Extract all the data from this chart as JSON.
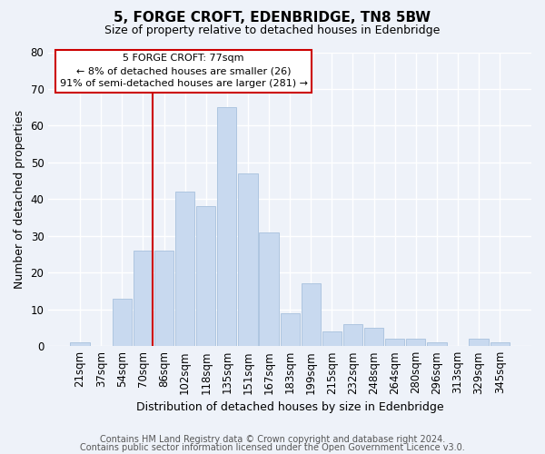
{
  "title": "5, FORGE CROFT, EDENBRIDGE, TN8 5BW",
  "subtitle": "Size of property relative to detached houses in Edenbridge",
  "xlabel": "Distribution of detached houses by size in Edenbridge",
  "ylabel": "Number of detached properties",
  "bar_labels": [
    "21sqm",
    "37sqm",
    "54sqm",
    "70sqm",
    "86sqm",
    "102sqm",
    "118sqm",
    "135sqm",
    "151sqm",
    "167sqm",
    "183sqm",
    "199sqm",
    "215sqm",
    "232sqm",
    "248sqm",
    "264sqm",
    "280sqm",
    "296sqm",
    "313sqm",
    "329sqm",
    "345sqm"
  ],
  "bar_values": [
    1,
    0,
    13,
    26,
    26,
    42,
    38,
    65,
    47,
    31,
    9,
    17,
    4,
    6,
    5,
    2,
    2,
    1,
    0,
    2,
    1
  ],
  "bar_color": "#c8d9ef",
  "bar_edgecolor": "#aec6e0",
  "vline_color": "#cc0000",
  "ylim": [
    0,
    80
  ],
  "yticks": [
    0,
    10,
    20,
    30,
    40,
    50,
    60,
    70,
    80
  ],
  "annotation_title": "5 FORGE CROFT: 77sqm",
  "annotation_line1": "← 8% of detached houses are smaller (26)",
  "annotation_line2": "91% of semi-detached houses are larger (281) →",
  "annotation_box_facecolor": "#ffffff",
  "annotation_box_edgecolor": "#cc0000",
  "footer1": "Contains HM Land Registry data © Crown copyright and database right 2024.",
  "footer2": "Contains public sector information licensed under the Open Government Licence v3.0.",
  "background_color": "#eef2f9",
  "grid_color": "#ffffff",
  "title_fontsize": 11,
  "subtitle_fontsize": 9,
  "axis_label_fontsize": 9,
  "tick_fontsize": 8.5,
  "footer_fontsize": 7
}
